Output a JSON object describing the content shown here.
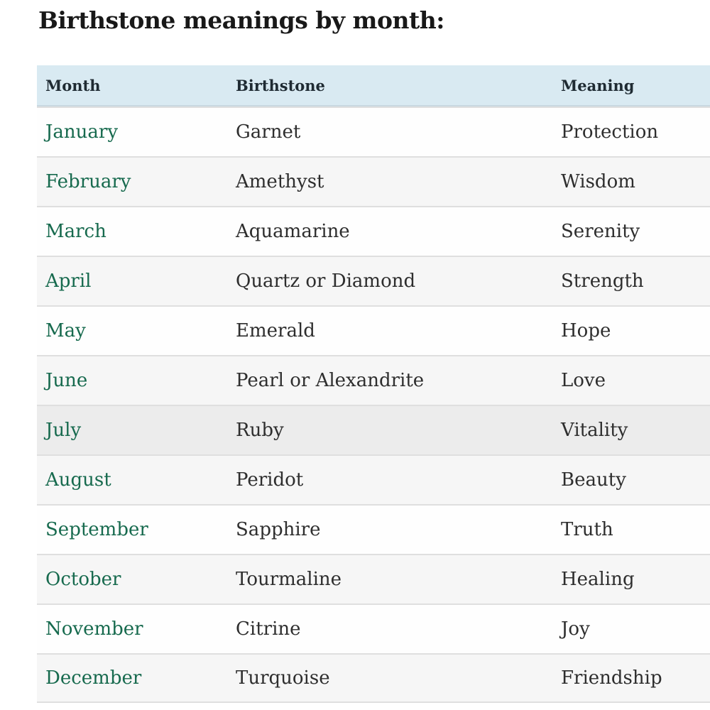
{
  "page": {
    "title": "Birthstone meanings by month:"
  },
  "table": {
    "columns": [
      "Month",
      "Birthstone",
      "Meaning"
    ],
    "rows": [
      {
        "month": "January",
        "birthstone": "Garnet",
        "meaning": "Protection",
        "stripe": "white"
      },
      {
        "month": "February",
        "birthstone": "Amethyst",
        "meaning": "Wisdom",
        "stripe": "gray"
      },
      {
        "month": "March",
        "birthstone": "Aquamarine",
        "meaning": "Serenity",
        "stripe": "white"
      },
      {
        "month": "April",
        "birthstone": "Quartz or Diamond",
        "meaning": "Strength",
        "stripe": "gray"
      },
      {
        "month": "May",
        "birthstone": "Emerald",
        "meaning": "Hope",
        "stripe": "white"
      },
      {
        "month": "June",
        "birthstone": "Pearl or Alexandrite",
        "meaning": "Love",
        "stripe": "gray"
      },
      {
        "month": "July",
        "birthstone": "Ruby",
        "meaning": "Vitality",
        "stripe": "highlight"
      },
      {
        "month": "August",
        "birthstone": "Peridot",
        "meaning": "Beauty",
        "stripe": "gray"
      },
      {
        "month": "September",
        "birthstone": "Sapphire",
        "meaning": "Truth",
        "stripe": "white"
      },
      {
        "month": "October",
        "birthstone": "Tourmaline",
        "meaning": "Healing",
        "stripe": "gray"
      },
      {
        "month": "November",
        "birthstone": "Citrine",
        "meaning": "Joy",
        "stripe": "white"
      },
      {
        "month": "December",
        "birthstone": "Turquoise",
        "meaning": "Friendship",
        "stripe": "gray"
      }
    ]
  },
  "colors": {
    "header_bg": "#d9eaf2",
    "header_border": "#c9d8e0",
    "row_gray": "#f6f6f6",
    "row_highlight": "#ececec",
    "divider": "#dfdfdf",
    "month_link": "#176a4e",
    "text": "#2e2e2e",
    "header_text": "#1f2b33",
    "title_text": "#181818"
  }
}
